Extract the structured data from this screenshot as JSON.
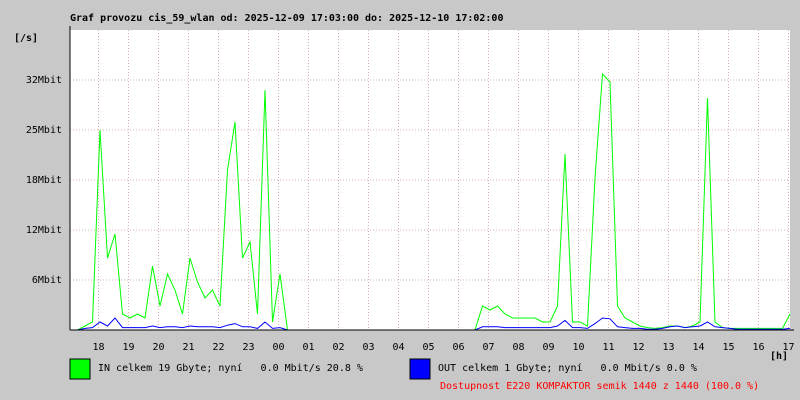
{
  "chart_data": {
    "type": "line",
    "title": "Graf provozu cis_59_wlan od: 2025-12-09 17:03:00 do: 2025-12-10 17:02:00",
    "y_label": "[/s]",
    "x_label": "[h]",
    "x": [
      0,
      0.25,
      0.5,
      0.75,
      1,
      1.25,
      1.5,
      1.75,
      2,
      2.25,
      2.5,
      2.75,
      3,
      3.25,
      3.5,
      3.75,
      4,
      4.25,
      4.5,
      4.75,
      5,
      5.25,
      5.5,
      5.75,
      6,
      6.25,
      6.5,
      6.75,
      7,
      7.25,
      7.5,
      7.75,
      8,
      8.25,
      8.5,
      8.75,
      9,
      9.25,
      9.5,
      9.75,
      10,
      10.25,
      10.5,
      10.75,
      11,
      11.25,
      11.5,
      11.75,
      12,
      12.25,
      12.5,
      12.75,
      13,
      13.25,
      13.5,
      13.75,
      14,
      14.25,
      14.5,
      14.75,
      15,
      15.25,
      15.5,
      15.75,
      16,
      16.25,
      16.5,
      16.75,
      17,
      17.25,
      17.5,
      17.75,
      18,
      18.25,
      18.5,
      18.75,
      19,
      19.25,
      19.5,
      19.75,
      20,
      20.25,
      20.5,
      20.75,
      21,
      21.25,
      21.5,
      21.75,
      22,
      22.25,
      22.5,
      22.75,
      23,
      23.25,
      23.5,
      23.75,
      24
    ],
    "series": [
      {
        "name": "IN celkem 19 Gbyte; nyní   0.0 Mbit/s 20.8 %",
        "color": "#00ff00",
        "values": [
          0,
          0,
          0.5,
          1,
          25,
          9,
          12,
          2,
          1.5,
          2,
          1.5,
          8,
          3,
          7,
          5,
          2,
          9,
          6,
          4,
          5,
          3,
          20,
          26,
          9,
          11,
          2,
          30,
          1,
          7,
          0,
          0,
          0,
          0,
          0,
          0,
          0,
          0,
          0,
          0,
          0,
          0,
          0,
          0,
          0,
          0,
          0,
          0,
          0,
          0,
          0,
          0,
          0,
          0,
          0,
          0,
          3,
          2.5,
          3,
          2,
          1.5,
          1.5,
          1.5,
          1.5,
          1,
          1,
          3,
          22,
          1,
          1,
          0.5,
          19,
          32,
          31,
          3,
          1.5,
          1,
          0.5,
          0.3,
          0.2,
          0.3,
          0.5,
          0.5,
          0.3,
          0.5,
          1,
          29,
          1,
          0.3,
          0.2,
          0.2,
          0.2,
          0.2,
          0.2,
          0.2,
          0.2,
          0.2,
          2
        ]
      },
      {
        "name": "OUT celkem 1 Gbyte; nyní   0.0 Mbit/s 0.0 %",
        "color": "#0000ff",
        "values": [
          0,
          0,
          0.2,
          0.3,
          1,
          0.5,
          1.5,
          0.3,
          0.3,
          0.3,
          0.3,
          0.5,
          0.3,
          0.4,
          0.4,
          0.3,
          0.5,
          0.4,
          0.4,
          0.4,
          0.3,
          0.6,
          0.8,
          0.4,
          0.4,
          0.2,
          1,
          0.2,
          0.3,
          0,
          0,
          0,
          0,
          0,
          0,
          0,
          0,
          0,
          0,
          0,
          0,
          0,
          0,
          0,
          0,
          0,
          0,
          0,
          0,
          0,
          0,
          0,
          0,
          0,
          0,
          0.4,
          0.4,
          0.4,
          0.3,
          0.3,
          0.3,
          0.3,
          0.3,
          0.3,
          0.3,
          0.5,
          1.2,
          0.3,
          0.3,
          0.2,
          0.8,
          1.5,
          1.4,
          0.4,
          0.3,
          0.2,
          0.2,
          0.1,
          0.1,
          0.2,
          0.4,
          0.5,
          0.3,
          0.4,
          0.5,
          1,
          0.4,
          0.3,
          0.2,
          0.1,
          0.1,
          0.1,
          0.1,
          0.1,
          0.1,
          0.1,
          0.2
        ]
      }
    ],
    "availability": "Dostupnost E220 KOMPAKTOR semik 1440 z 1440 (100.0 %)",
    "xlim": [
      0,
      24
    ],
    "xticks": [
      {
        "value": 0.95,
        "label": "18"
      },
      {
        "value": 1.95,
        "label": "19"
      },
      {
        "value": 2.95,
        "label": "20"
      },
      {
        "value": 3.95,
        "label": "21"
      },
      {
        "value": 4.95,
        "label": "22"
      },
      {
        "value": 5.95,
        "label": "23"
      },
      {
        "value": 6.95,
        "label": "00"
      },
      {
        "value": 7.95,
        "label": "01"
      },
      {
        "value": 8.95,
        "label": "02"
      },
      {
        "value": 9.95,
        "label": "03"
      },
      {
        "value": 10.95,
        "label": "04"
      },
      {
        "value": 11.95,
        "label": "05"
      },
      {
        "value": 12.95,
        "label": "06"
      },
      {
        "value": 13.95,
        "label": "07"
      },
      {
        "value": 14.95,
        "label": "08"
      },
      {
        "value": 15.95,
        "label": "09"
      },
      {
        "value": 16.95,
        "label": "10"
      },
      {
        "value": 17.95,
        "label": "11"
      },
      {
        "value": 18.95,
        "label": "12"
      },
      {
        "value": 19.95,
        "label": "13"
      },
      {
        "value": 20.95,
        "label": "14"
      },
      {
        "value": 21.95,
        "label": "15"
      },
      {
        "value": 22.95,
        "label": "16"
      },
      {
        "value": 23.95,
        "label": "17"
      }
    ],
    "ylim": [
      0,
      37.5
    ],
    "yticks": [
      {
        "value": 6.25,
        "label": "6Mbit"
      },
      {
        "value": 12.5,
        "label": "12Mbit"
      },
      {
        "value": 18.75,
        "label": "18Mbit"
      },
      {
        "value": 25,
        "label": "25Mbit"
      },
      {
        "value": 31.25,
        "label": "32Mbit"
      }
    ],
    "grid": true
  }
}
